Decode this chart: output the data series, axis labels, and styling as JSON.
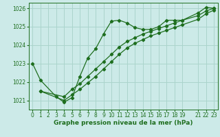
{
  "bg_color": "#cceae8",
  "grid_color": "#aad4cc",
  "line_color": "#1e6e1e",
  "xlabel": "Graphe pression niveau de la mer (hPa)",
  "xlim": [
    -0.5,
    23.5
  ],
  "ylim": [
    1020.5,
    1026.3
  ],
  "yticks": [
    1021,
    1022,
    1023,
    1024,
    1025,
    1026
  ],
  "xticks": [
    0,
    1,
    2,
    3,
    4,
    5,
    6,
    7,
    8,
    9,
    10,
    11,
    12,
    13,
    14,
    15,
    16,
    17,
    18,
    19,
    21,
    22,
    23
  ],
  "line1_x": [
    0,
    1,
    3,
    4,
    5,
    6,
    7,
    8,
    9,
    10,
    11,
    12,
    13,
    14,
    15,
    16,
    17,
    18,
    19,
    21,
    22,
    23
  ],
  "line1_y": [
    1023.0,
    1022.1,
    1021.2,
    1020.9,
    1021.15,
    1022.3,
    1023.3,
    1023.8,
    1024.6,
    1025.3,
    1025.35,
    1025.2,
    1024.95,
    1024.85,
    1024.85,
    1025.0,
    1025.35,
    1025.35,
    1025.35,
    1025.75,
    1026.05,
    1026.0
  ],
  "line2_x": [
    1,
    4,
    5,
    6,
    7,
    8,
    9,
    10,
    11,
    12,
    13,
    14,
    15,
    16,
    17,
    18,
    19,
    21,
    22,
    23
  ],
  "line2_y": [
    1021.5,
    1021.2,
    1021.6,
    1021.9,
    1022.3,
    1022.7,
    1023.1,
    1023.5,
    1023.9,
    1024.2,
    1024.4,
    1024.6,
    1024.75,
    1024.9,
    1025.05,
    1025.2,
    1025.35,
    1025.6,
    1025.85,
    1026.0
  ],
  "line3_x": [
    1,
    4,
    5,
    6,
    7,
    8,
    9,
    10,
    11,
    12,
    13,
    14,
    15,
    16,
    17,
    18,
    19,
    21,
    22,
    23
  ],
  "line3_y": [
    1021.5,
    1021.0,
    1021.3,
    1021.6,
    1021.95,
    1022.3,
    1022.7,
    1023.1,
    1023.5,
    1023.85,
    1024.1,
    1024.3,
    1024.5,
    1024.65,
    1024.8,
    1024.95,
    1025.1,
    1025.4,
    1025.7,
    1025.9
  ]
}
